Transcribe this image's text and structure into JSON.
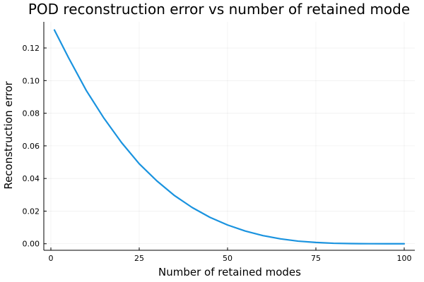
{
  "chart_data": {
    "type": "line",
    "title": "POD reconstruction error vs number of retained mode",
    "xlabel": "Number of retained modes",
    "ylabel": "Reconstruction error",
    "xlim": [
      -2,
      103
    ],
    "ylim": [
      -0.004,
      0.136
    ],
    "xticks": [
      0,
      25,
      50,
      75,
      100
    ],
    "xtick_labels": [
      "0",
      "25",
      "50",
      "75",
      "100"
    ],
    "yticks": [
      0.0,
      0.02,
      0.04,
      0.06,
      0.08,
      0.1,
      0.12
    ],
    "ytick_labels": [
      "0.00",
      "0.02",
      "0.04",
      "0.06",
      "0.08",
      "0.10",
      "0.12"
    ],
    "grid": true,
    "legend": "none",
    "series": [
      {
        "color": "#1a93df",
        "x": [
          1,
          5,
          10,
          15,
          20,
          25,
          30,
          35,
          40,
          45,
          50,
          55,
          60,
          65,
          70,
          75,
          80,
          85,
          90,
          95,
          100
        ],
        "y": [
          0.131,
          0.114,
          0.094,
          0.077,
          0.062,
          0.049,
          0.0385,
          0.0295,
          0.0222,
          0.0162,
          0.0115,
          0.0078,
          0.005,
          0.003,
          0.0016,
          0.0008,
          0.0003,
          0.0001,
          2e-05,
          0.0,
          0.0
        ]
      }
    ]
  }
}
